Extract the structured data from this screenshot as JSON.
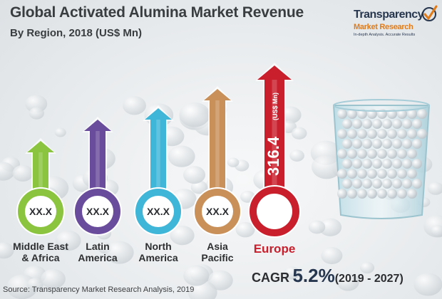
{
  "header": {
    "title": "Global Activated Alumina Market Revenue",
    "subtitle": "By Region, 2018 (US$ Mn)"
  },
  "logo": {
    "name": "Transparency",
    "sub": "Market Research",
    "tagline": "In-depth Analysis. Accurate Results"
  },
  "chart_data": {
    "type": "bar",
    "title": "Global Activated Alumina Market Revenue",
    "subtitle": "By Region, 2018 (US$ Mn)",
    "categories": [
      "Middle East & Africa",
      "Latin America",
      "North America",
      "Asia Pacific",
      "Europe"
    ],
    "category_lines": [
      [
        "Middle East",
        "& Africa"
      ],
      [
        "Latin",
        "America"
      ],
      [
        "North",
        "America"
      ],
      [
        "Asia",
        "Pacific"
      ],
      [
        "Europe"
      ]
    ],
    "value_labels": [
      "XX.X",
      "XX.X",
      "XX.X",
      "XX.X",
      "316.4"
    ],
    "values": [
      null,
      null,
      null,
      null,
      316.4
    ],
    "unit_label": "(US$ Mn)",
    "colors": [
      "#8bc53f",
      "#6a4c9c",
      "#3fb6d8",
      "#c9905a",
      "#c91e2c"
    ],
    "cagr": {
      "label": "CAGR",
      "value": "5.2%",
      "period": "(2019 - 2027)"
    }
  },
  "footer": {
    "source": "Source: Transparency Market Research Analysis, 2019"
  }
}
